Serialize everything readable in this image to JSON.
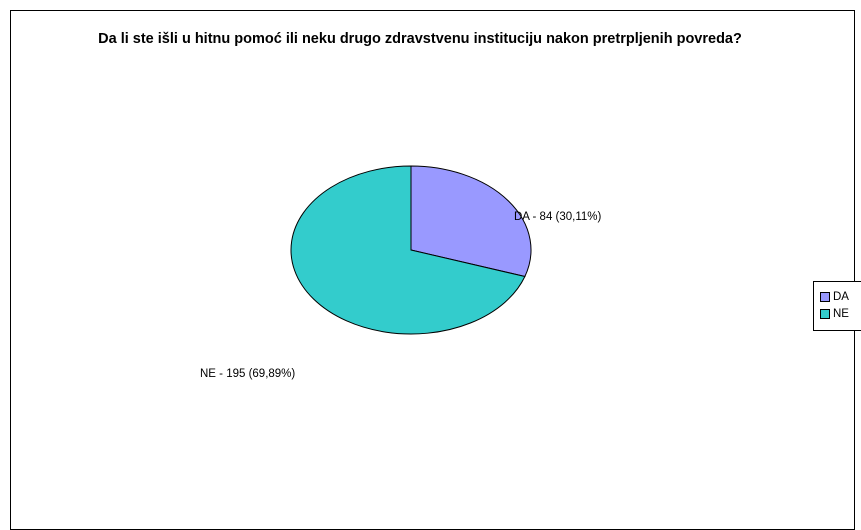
{
  "chart_data": {
    "type": "pie",
    "title": "Da li ste išli u hitnu pomoć ili neku drugo zdravstvenu instituciju nakon pretrpljenih povreda?",
    "categories": [
      "DA",
      "NE"
    ],
    "values": [
      84,
      195
    ],
    "percentages": [
      30.11,
      69.89
    ],
    "slice_labels": [
      "DA - 84 (30,11%)",
      "NE - 195 (69,89%)"
    ],
    "colors": [
      "#9999ff",
      "#33cccc"
    ],
    "legend": {
      "placement": "right",
      "items": [
        "DA",
        "NE"
      ]
    }
  }
}
